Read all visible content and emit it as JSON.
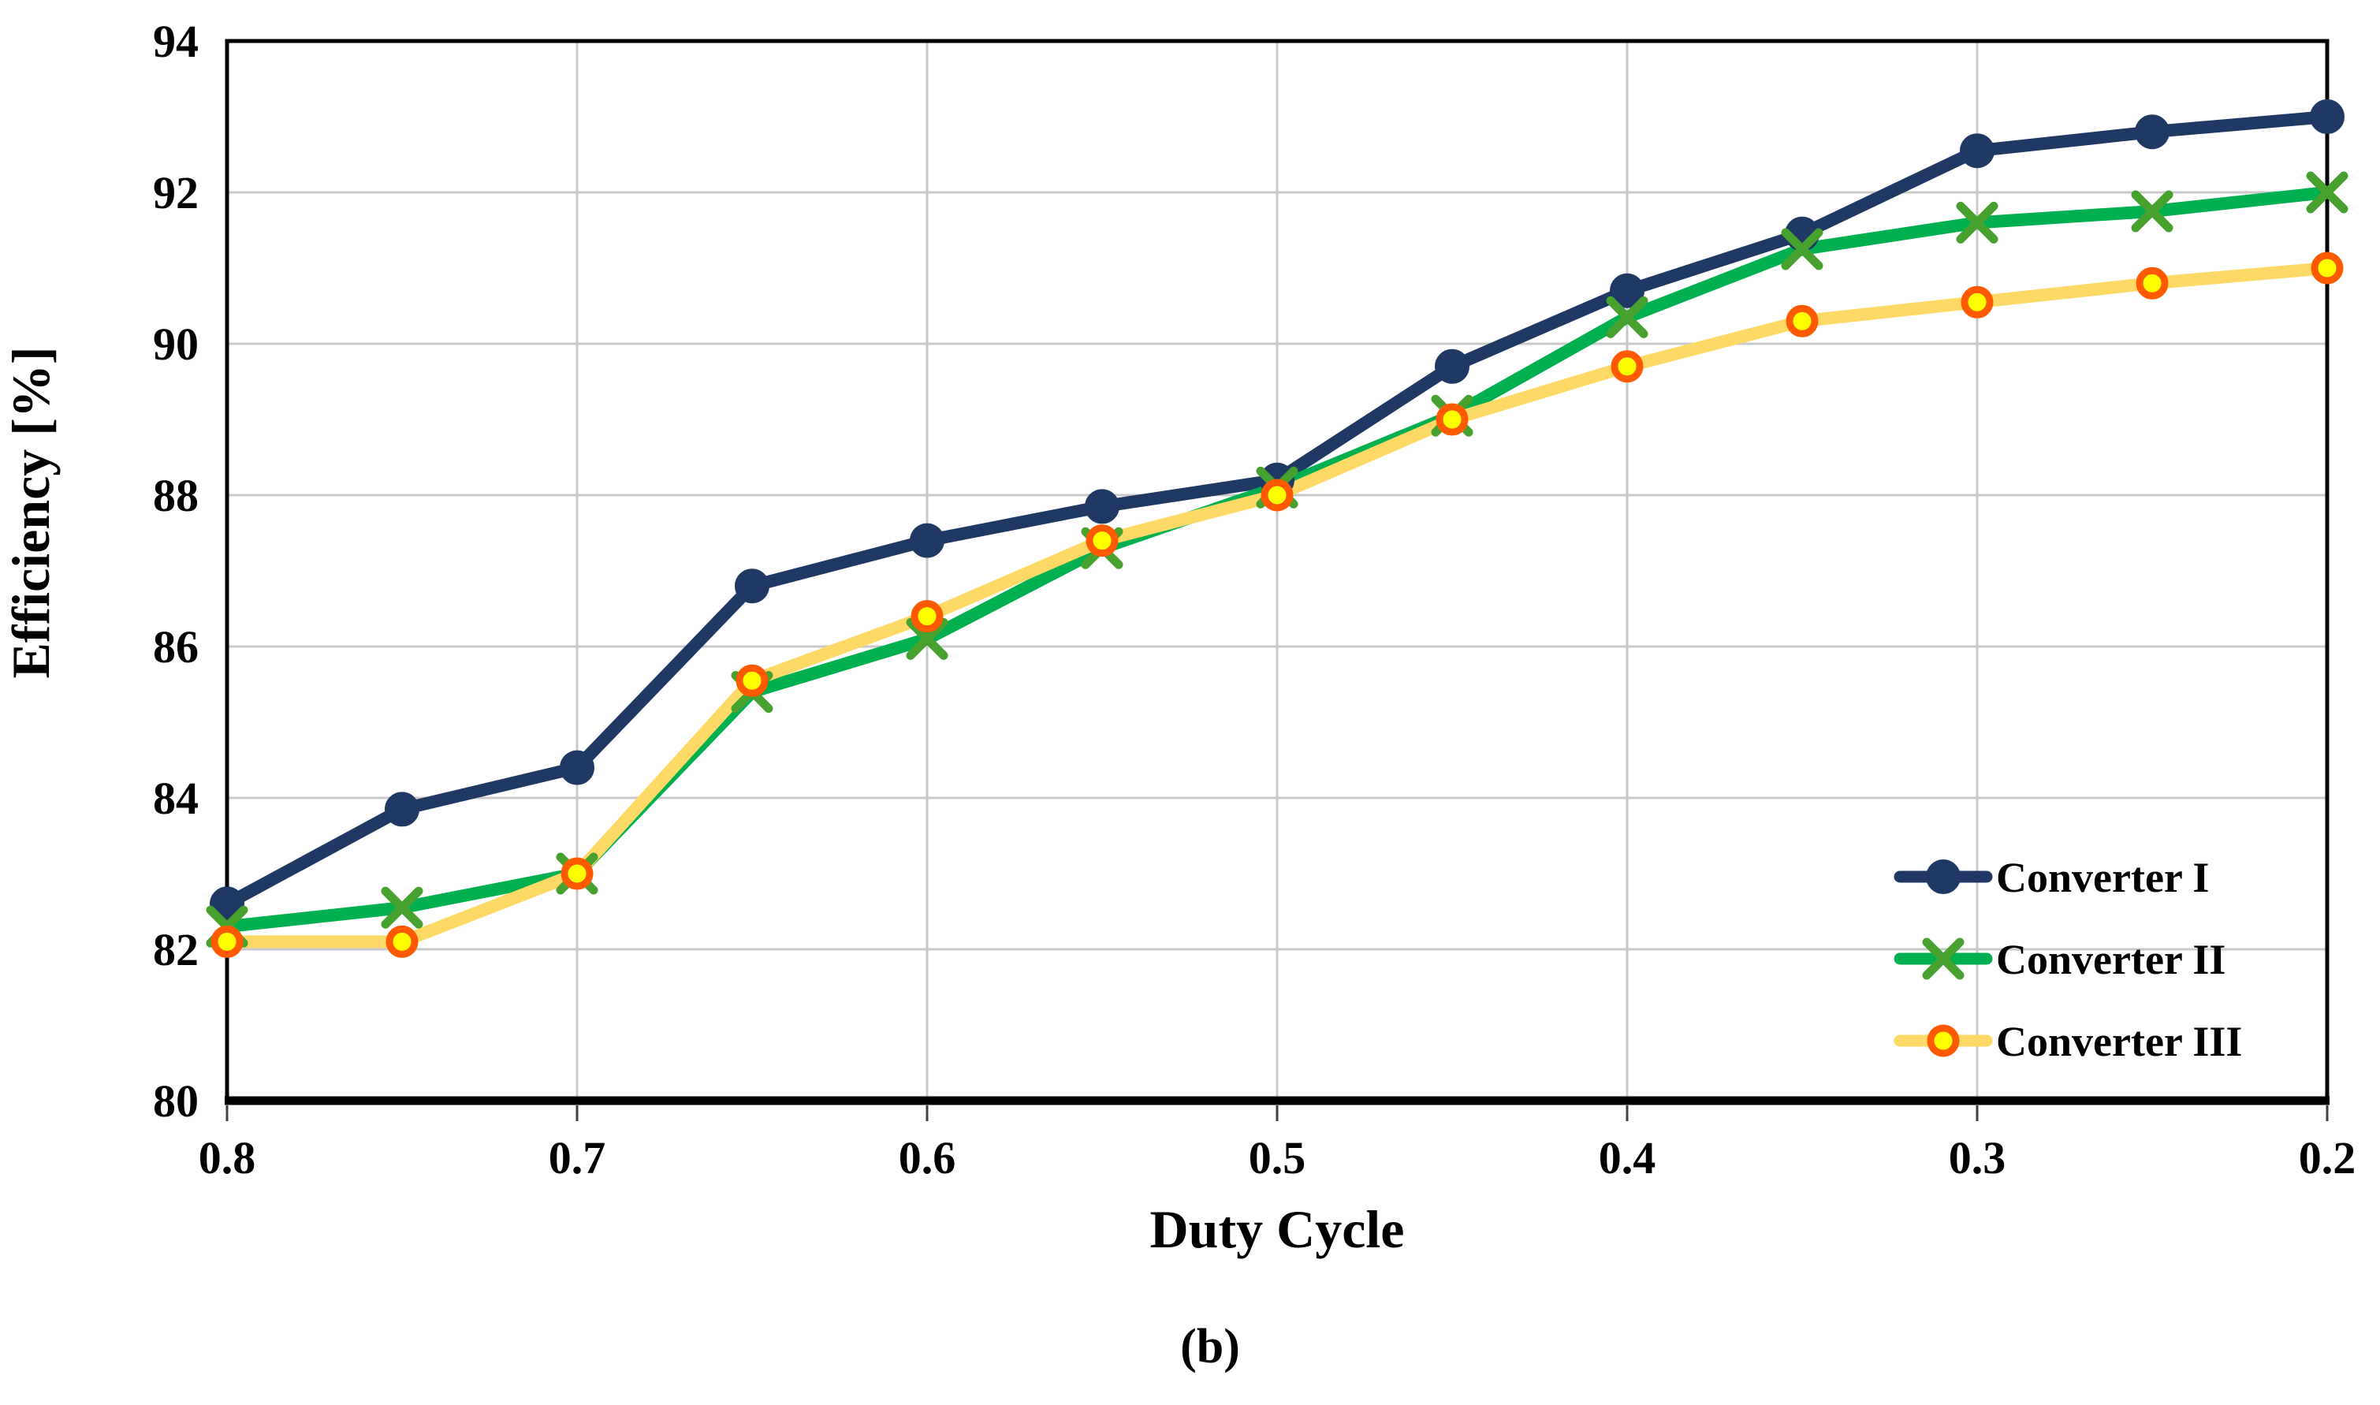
{
  "figure": {
    "caption": "(b)"
  },
  "chart_data": {
    "type": "line",
    "title": "",
    "xlabel": "Duty Cycle",
    "ylabel": "Efficiency  [%]",
    "x_axis_reversed": true,
    "xlim": [
      0.8,
      0.2
    ],
    "ylim": [
      80,
      94
    ],
    "x_tick_labels": [
      "0.8",
      "0.7",
      "0.6",
      "0.5",
      "0.4",
      "0.3",
      "0.2"
    ],
    "x_ticks": [
      0.8,
      0.7,
      0.6,
      0.5,
      0.4,
      0.3,
      0.2
    ],
    "y_ticks": [
      80,
      82,
      84,
      86,
      88,
      90,
      92,
      94
    ],
    "grid": true,
    "legend_position": "inside-bottom-right",
    "x": [
      0.8,
      0.75,
      0.7,
      0.65,
      0.6,
      0.55,
      0.5,
      0.45,
      0.4,
      0.35,
      0.3,
      0.25,
      0.2
    ],
    "series": [
      {
        "name": "Converter I",
        "marker": "circle",
        "line_color": "#1F3864",
        "marker_fill": "#1F3864",
        "marker_stroke": "#1F3864",
        "values": [
          82.6,
          83.85,
          84.4,
          86.8,
          87.4,
          87.85,
          88.2,
          89.7,
          90.7,
          91.45,
          92.55,
          92.8,
          93.0
        ]
      },
      {
        "name": "Converter II",
        "marker": "x",
        "line_color": "#00B050",
        "marker_fill": "none",
        "marker_stroke": "#46A12E",
        "values": [
          82.3,
          82.55,
          83.0,
          85.4,
          86.1,
          87.3,
          88.1,
          89.05,
          90.35,
          91.25,
          91.6,
          91.75,
          92.0
        ]
      },
      {
        "name": "Converter III",
        "marker": "ring",
        "line_color": "#FFD966",
        "marker_fill": "#FFFF00",
        "marker_stroke": "#FF5A00",
        "values": [
          82.1,
          82.1,
          83.0,
          85.55,
          86.4,
          87.4,
          88.0,
          89.0,
          89.7,
          90.3,
          90.55,
          90.8,
          91.0
        ]
      }
    ],
    "colors": {
      "grid": "#C9C9C9",
      "plot_border": "#000000",
      "bottom_axis": "#000000",
      "tick_mark": "#404040",
      "text": "#000000",
      "background": "#FFFFFF"
    }
  }
}
